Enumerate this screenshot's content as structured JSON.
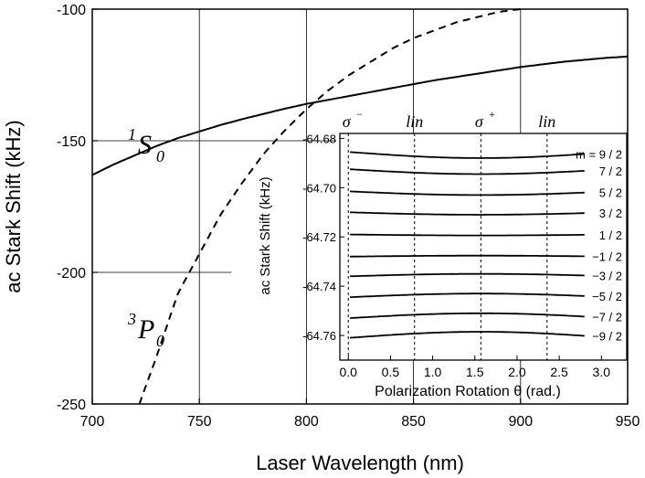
{
  "chart_data": [
    {
      "type": "line",
      "xlabel": "Laser Wavelength (nm)",
      "ylabel": "ac Stark Shift (kHz)",
      "xlim": [
        700,
        950
      ],
      "ylim": [
        -250,
        -100
      ],
      "xticks": [
        700,
        750,
        800,
        850,
        900,
        950
      ],
      "yticks": [
        -100,
        -150,
        -200,
        -250
      ],
      "xtick_labels": [
        "700",
        "750",
        "800",
        "850",
        "900",
        "950"
      ],
      "ytick_labels": [
        "-100",
        "-150",
        "-200",
        "-250"
      ],
      "grid": false,
      "series": [
        {
          "name": "1S0",
          "style": "solid",
          "x": [
            700,
            710,
            720,
            730,
            740,
            750,
            760,
            770,
            780,
            790,
            800,
            820,
            840,
            860,
            880,
            900,
            920,
            940,
            950
          ],
          "y": [
            -163,
            -159,
            -155.5,
            -152,
            -149,
            -146.5,
            -144,
            -141.8,
            -139.8,
            -137.8,
            -136,
            -133,
            -130,
            -127,
            -124.5,
            -122,
            -120,
            -118.5,
            -118
          ]
        },
        {
          "name": "3P0",
          "style": "dashed",
          "x": [
            722,
            730,
            740,
            750,
            760,
            770,
            780,
            790,
            800,
            810,
            820,
            830,
            840,
            850,
            860,
            870,
            880,
            890,
            900
          ],
          "y": [
            -250,
            -232,
            -208,
            -193,
            -178,
            -166,
            -155,
            -146,
            -138,
            -131,
            -125,
            -120,
            -115,
            -111,
            -108,
            -105,
            -103,
            -101,
            -100
          ]
        }
      ],
      "annotations": [
        {
          "sup": "1",
          "main": "S",
          "sub": "0"
        },
        {
          "sup": "3",
          "main": "P",
          "sub": "0"
        }
      ]
    },
    {
      "type": "line",
      "xlabel": "Polarization Rotation θ (rad.)",
      "ylabel": "ac Stark Shift (kHz)",
      "xlim": [
        -0.1,
        3.3
      ],
      "ylim": [
        -64.77,
        -64.678
      ],
      "xticks": [
        0,
        0.5,
        1,
        1.5,
        2,
        2.5,
        3
      ],
      "xtick_labels": [
        "0.0",
        "0.5",
        "1.0",
        "1.5",
        "2.0",
        "2.5",
        "3.0"
      ],
      "yticks": [
        -64.68,
        -64.7,
        -64.72,
        -64.74,
        -64.76
      ],
      "ytick_labels": [
        "-64.68",
        "-64.70",
        "-64.72",
        "-64.74",
        "-64.76"
      ],
      "vlines": [
        0,
        0.785,
        1.571,
        2.356
      ],
      "top_labels": [
        {
          "base": "σ",
          "sup": "−"
        },
        {
          "base": "lin",
          "sup": ""
        },
        {
          "base": "σ",
          "sup": "+"
        },
        {
          "base": "lin",
          "sup": ""
        }
      ],
      "series": [
        {
          "name": "m = 9 / 2",
          "center": -64.6855,
          "amp": 0.0025
        },
        {
          "name": "7 / 2",
          "center": -64.6925,
          "amp": 0.002
        },
        {
          "name": "5 / 2",
          "center": -64.7015,
          "amp": 0.0015
        },
        {
          "name": "3 / 2",
          "center": -64.71,
          "amp": 0.001
        },
        {
          "name": "1 / 2",
          "center": -64.719,
          "amp": 0.0004
        },
        {
          "name": "−1 / 2",
          "center": -64.728,
          "amp": -0.0004
        },
        {
          "name": "−3 / 2",
          "center": -64.736,
          "amp": -0.001
        },
        {
          "name": "−5 / 2",
          "center": -64.7445,
          "amp": -0.0015
        },
        {
          "name": "−7 / 2",
          "center": -64.753,
          "amp": -0.002
        },
        {
          "name": "−9 / 2",
          "center": -64.761,
          "amp": -0.0025
        }
      ]
    }
  ]
}
